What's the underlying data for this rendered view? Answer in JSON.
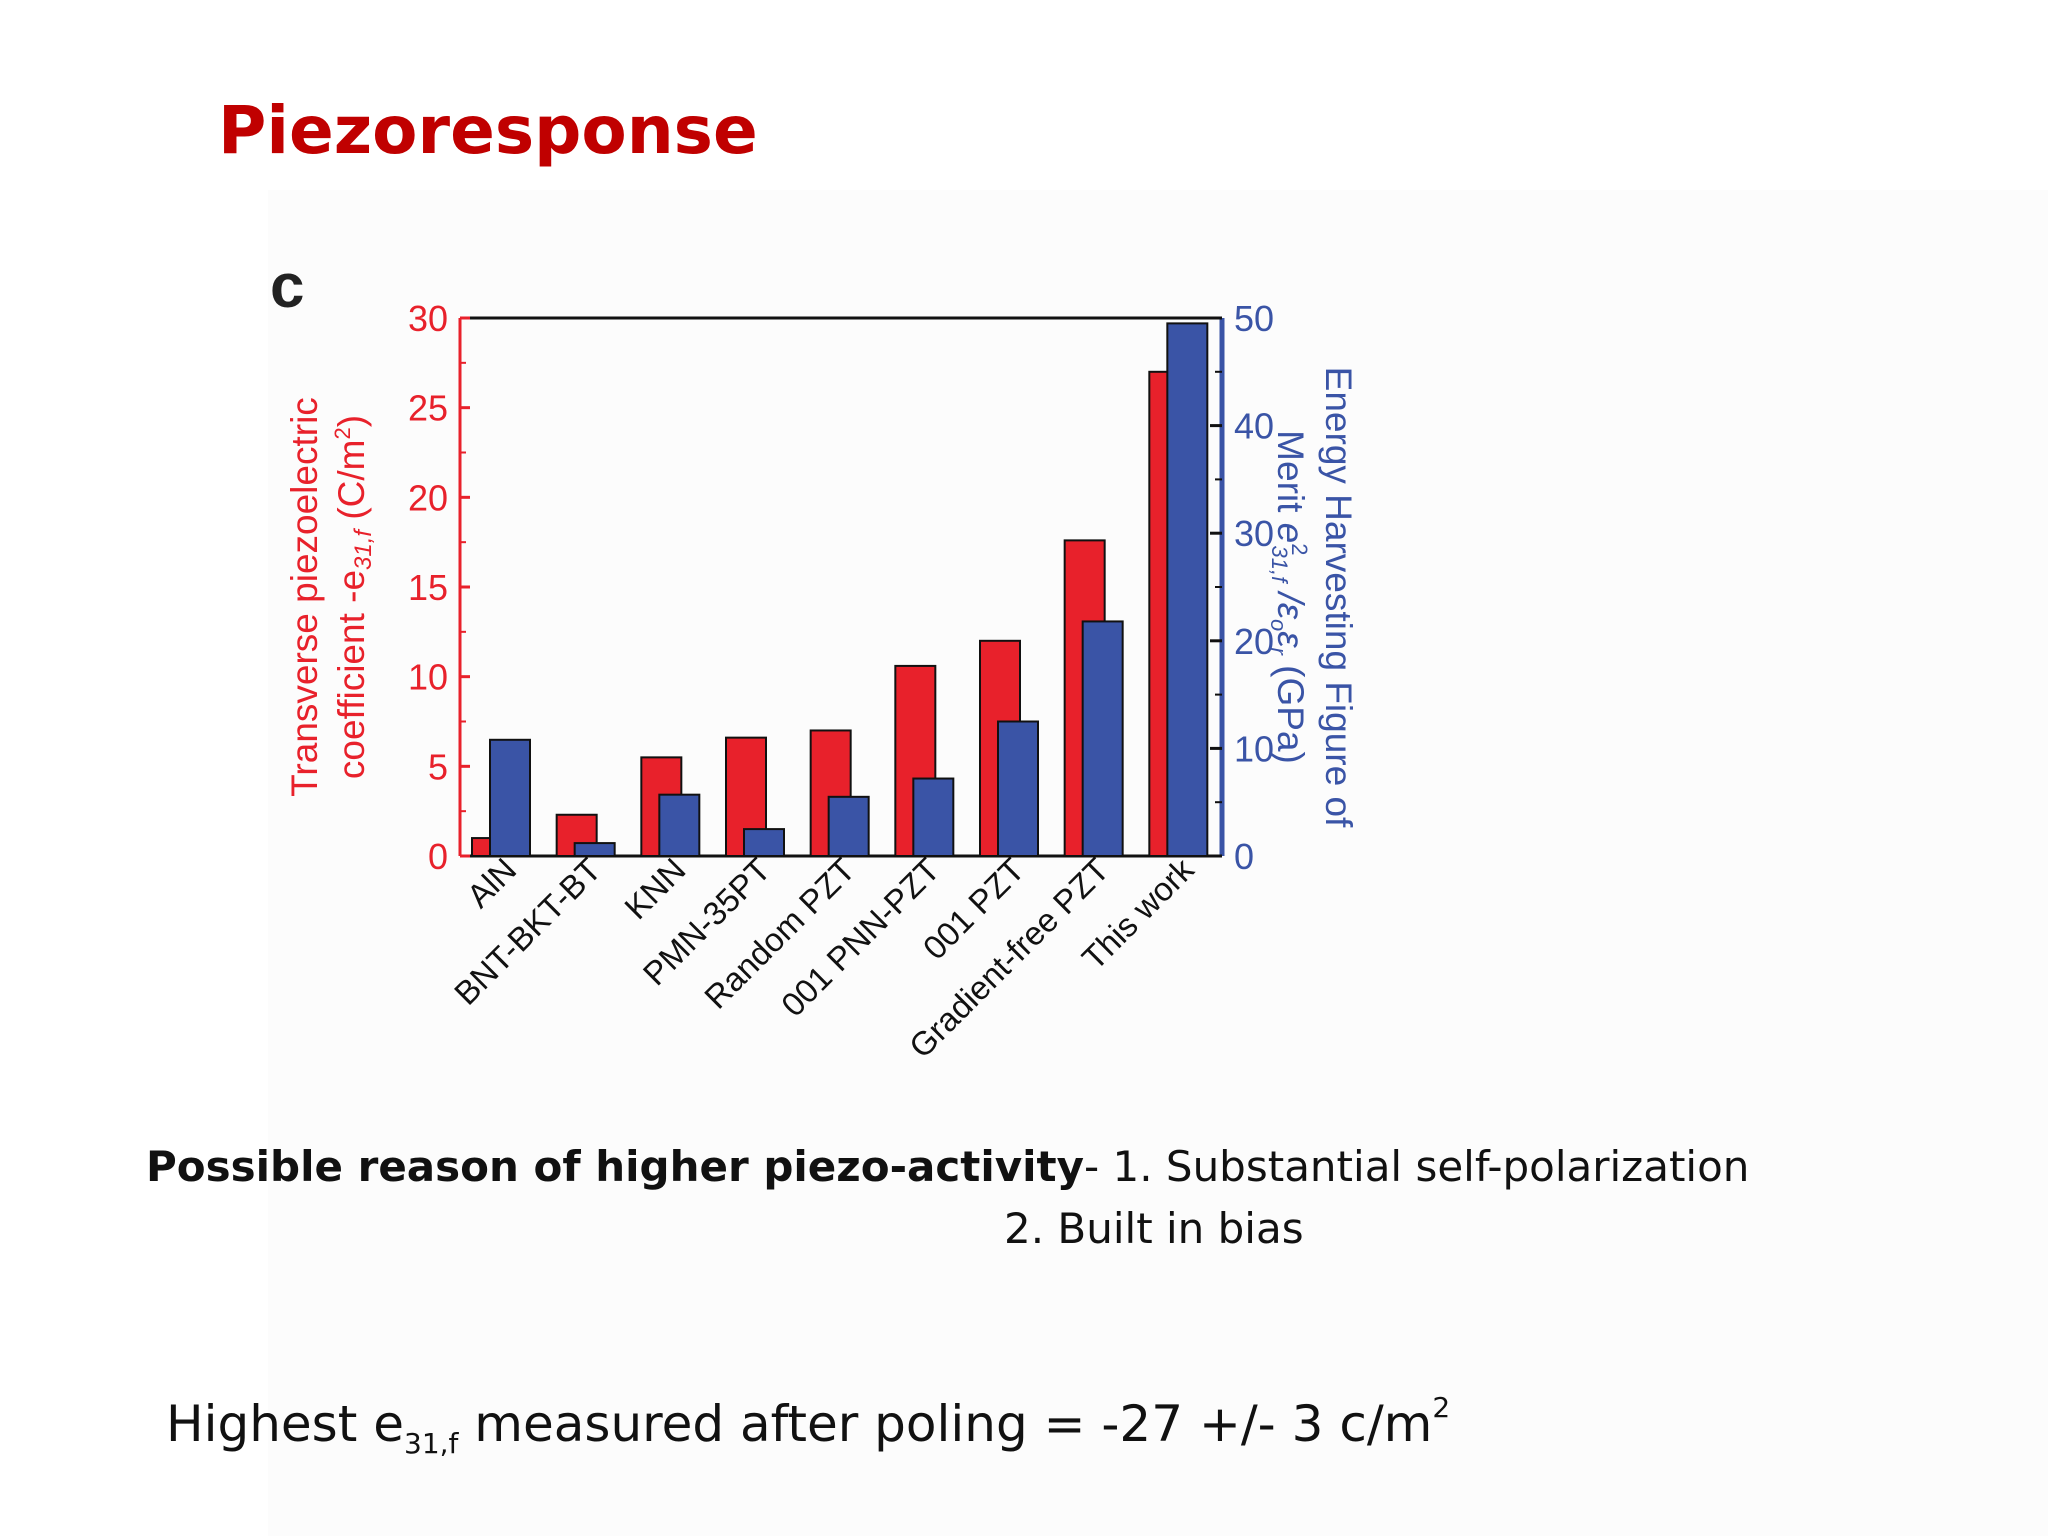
{
  "slide": {
    "title": "Piezoresponse",
    "reason_label": "Possible reason of higher piezo-activity",
    "reason_sep": "-  ",
    "reason_1": "1. Substantial self-polarization",
    "reason_2": "2. Built in bias",
    "highest_prefix": "Highest e",
    "highest_sub": "31,f",
    "highest_mid": " measured after poling  = -27 +/- 3 c/m",
    "highest_sup": "2"
  },
  "chart_data": {
    "type": "bar",
    "panel_label": "c",
    "categories": [
      "AlN",
      "BNT-BKT-BT",
      "KNN",
      "PMN-35PT",
      "Random PZT",
      "001 PNN-PZT",
      "001 PZT",
      "Gradient-free PZT",
      "This work"
    ],
    "series": [
      {
        "axis": "left",
        "color": "#e8212b",
        "values": [
          1.0,
          2.3,
          5.5,
          6.6,
          7.0,
          10.6,
          12.0,
          17.6,
          27.0
        ]
      },
      {
        "axis": "right",
        "color": "#3a54a6",
        "values": [
          10.8,
          1.2,
          5.7,
          2.5,
          5.5,
          7.2,
          12.5,
          21.8,
          49.5
        ]
      }
    ],
    "left_axis": {
      "label_line1": "Transverse piezoelectric",
      "label_line2": "coefficient -e",
      "label_sub": "31,f",
      "label_tail": " (C/m",
      "label_sup": "2",
      "label_end": ")",
      "ylim": [
        0,
        30
      ],
      "ticks": [
        "0",
        "5",
        "10",
        "15",
        "20",
        "25",
        "30"
      ],
      "color": "#e8212b"
    },
    "right_axis": {
      "label_line1": "Energy Harvesting Figure of",
      "label_line2_a": "Merit ",
      "label_line2_e": "e",
      "label_line2_sup": "2",
      "label_line2_sub": "31,f",
      "label_line2_b": " /ε",
      "label_line2_sub2": "o",
      "label_line2_c": "ε",
      "label_line2_sub3": "r",
      "label_line2_d": "  (GPa)",
      "ylim": [
        0,
        50
      ],
      "ticks": [
        "0",
        "10",
        "20",
        "30",
        "40",
        "50"
      ],
      "color": "#3a54a6"
    }
  }
}
